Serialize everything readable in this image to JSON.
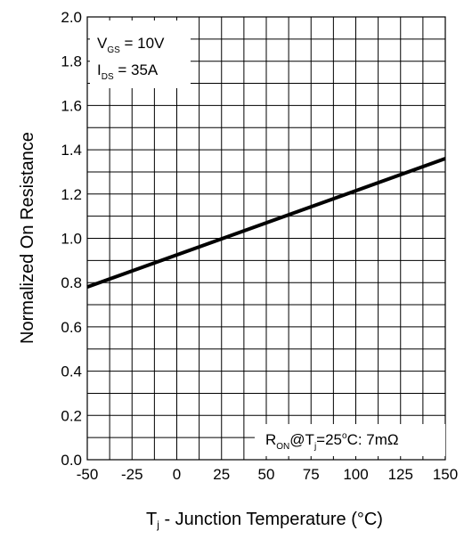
{
  "chart_data": {
    "type": "line",
    "xlabel": "Tj - Junction Temperature (°C)",
    "ylabel": "Normalized On Resistance",
    "xlim": [
      -50,
      150
    ],
    "ylim": [
      0.0,
      2.0
    ],
    "xticks": [
      -50,
      -25,
      0,
      25,
      50,
      75,
      100,
      125,
      150
    ],
    "yticks": [
      0.0,
      0.2,
      0.4,
      0.6,
      0.8,
      1.0,
      1.2,
      1.4,
      1.6,
      1.8,
      2.0
    ],
    "x_tick_labels": [
      "-50",
      "-25",
      "0",
      "25",
      "50",
      "75",
      "100",
      "125",
      "150"
    ],
    "y_tick_labels": [
      "0.0",
      "0.2",
      "0.4",
      "0.6",
      "0.8",
      "1.0",
      "1.2",
      "1.4",
      "1.6",
      "1.8",
      "2.0"
    ],
    "x_minor_step": 12.5,
    "y_minor_step": 0.1,
    "grid": true,
    "line_color": "#000000",
    "series": [
      {
        "x": [
          -50,
          150
        ],
        "y": [
          0.78,
          1.36
        ]
      }
    ],
    "annotations": {
      "conditions": [
        {
          "main": "V",
          "sub": "GS",
          "rest": " = 10V"
        },
        {
          "main": "I",
          "sub": "DS",
          "rest": " = 35A"
        }
      ],
      "ron": {
        "r": "R",
        "r_sub": "ON",
        "at": "@T",
        "t_sub": "j",
        "eq": "=25",
        "deg": "o",
        "tail": "C: 7mΩ"
      }
    }
  }
}
